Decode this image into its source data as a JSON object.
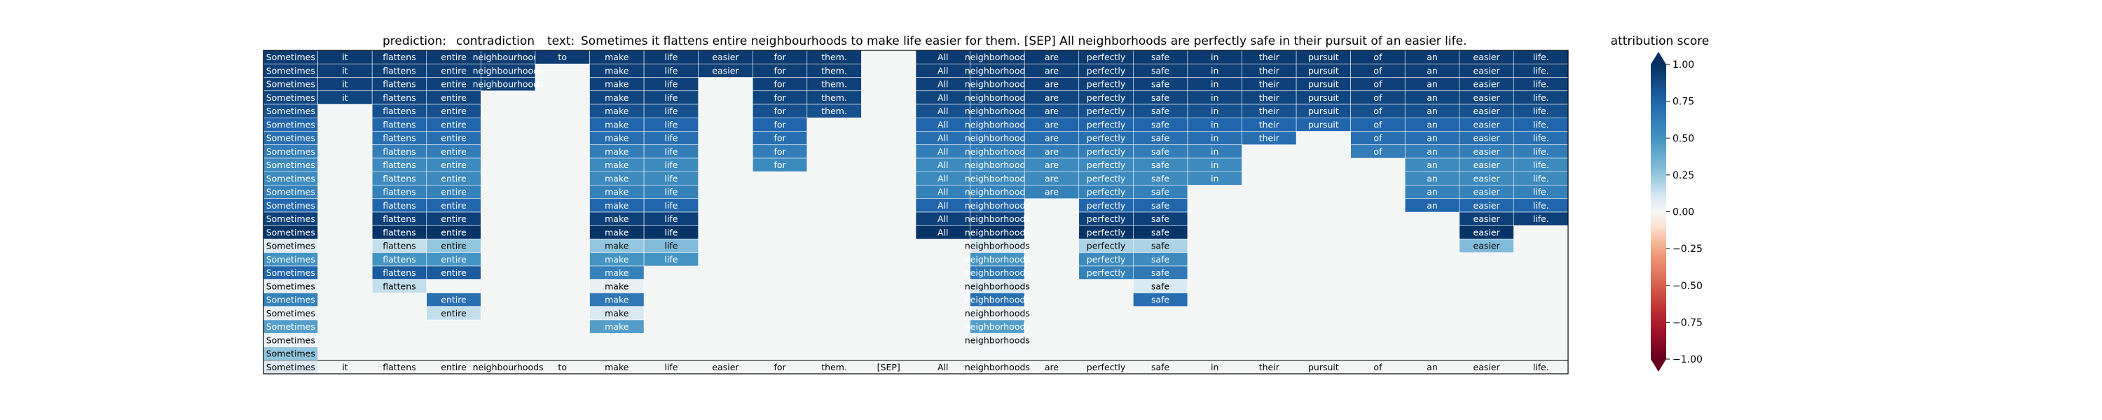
{
  "chart_data": {
    "type": "heatmap",
    "title": {
      "prediction_label": "prediction:",
      "prediction_value": "contradiction",
      "text_label": "text:",
      "text_value": "Sometimes it flattens entire neighbourhoods to make life easier for them. [SEP] All neighborhoods are perfectly safe in their pursuit of an easier life."
    },
    "tokens": [
      "Sometimes",
      "it",
      "flattens",
      "entire",
      "neighbourhoods",
      "to",
      "make",
      "life",
      "easier",
      "for",
      "them.",
      "[SEP]",
      "All",
      "neighborhoods",
      "are",
      "perfectly",
      "safe",
      "in",
      "their",
      "pursuit",
      "of",
      "an",
      "easier",
      "life."
    ],
    "rows": [
      [
        0.95,
        0.95,
        0.95,
        0.95,
        0.95,
        0.95,
        0.95,
        0.95,
        0.95,
        0.95,
        0.95,
        null,
        0.95,
        0.95,
        0.95,
        0.95,
        0.95,
        0.95,
        0.95,
        0.95,
        0.95,
        0.95,
        0.95,
        0.95
      ],
      [
        0.93,
        0.93,
        0.93,
        0.93,
        0.93,
        null,
        0.93,
        0.93,
        0.93,
        0.93,
        0.93,
        null,
        0.93,
        0.93,
        0.93,
        0.93,
        0.93,
        0.93,
        0.93,
        0.93,
        0.93,
        0.93,
        0.93,
        0.93
      ],
      [
        0.92,
        0.92,
        0.92,
        0.92,
        0.92,
        null,
        0.92,
        0.92,
        null,
        0.92,
        0.92,
        null,
        0.92,
        0.92,
        0.92,
        0.92,
        0.92,
        0.92,
        0.92,
        0.92,
        0.92,
        0.92,
        0.92,
        0.92
      ],
      [
        0.9,
        0.9,
        0.9,
        0.9,
        null,
        null,
        0.9,
        0.9,
        null,
        0.9,
        0.9,
        null,
        0.9,
        0.9,
        0.9,
        0.9,
        0.9,
        0.9,
        0.9,
        0.9,
        0.9,
        0.9,
        0.9,
        0.9
      ],
      [
        0.85,
        null,
        0.85,
        0.85,
        null,
        null,
        0.85,
        0.85,
        null,
        0.85,
        0.85,
        null,
        0.85,
        0.85,
        0.85,
        0.85,
        0.85,
        0.85,
        0.85,
        0.85,
        0.85,
        0.85,
        0.85,
        0.85
      ],
      [
        0.75,
        null,
        0.75,
        0.75,
        null,
        null,
        0.75,
        0.75,
        null,
        0.75,
        null,
        null,
        0.75,
        0.75,
        0.75,
        0.75,
        0.75,
        0.75,
        0.75,
        0.75,
        0.75,
        0.75,
        0.75,
        0.75
      ],
      [
        0.7,
        null,
        0.7,
        0.7,
        null,
        null,
        0.7,
        0.7,
        null,
        0.7,
        null,
        null,
        0.7,
        0.7,
        0.7,
        0.7,
        0.7,
        0.7,
        0.7,
        null,
        0.7,
        0.7,
        0.7,
        0.7
      ],
      [
        0.62,
        null,
        0.62,
        0.62,
        null,
        null,
        0.62,
        0.62,
        null,
        0.62,
        null,
        null,
        0.62,
        0.62,
        0.62,
        0.62,
        0.62,
        0.62,
        null,
        null,
        0.62,
        0.62,
        0.62,
        0.62
      ],
      [
        0.55,
        null,
        0.55,
        0.55,
        null,
        null,
        0.55,
        0.55,
        null,
        0.55,
        null,
        null,
        0.55,
        0.55,
        0.55,
        0.55,
        0.55,
        0.55,
        null,
        null,
        null,
        0.55,
        0.55,
        0.55
      ],
      [
        0.55,
        null,
        0.55,
        0.55,
        null,
        null,
        0.55,
        0.55,
        null,
        null,
        null,
        null,
        0.55,
        0.55,
        0.55,
        0.55,
        0.55,
        0.55,
        null,
        null,
        null,
        0.55,
        0.55,
        0.55
      ],
      [
        0.6,
        null,
        0.6,
        0.6,
        null,
        null,
        0.6,
        0.6,
        null,
        null,
        null,
        null,
        0.6,
        0.6,
        0.6,
        0.6,
        0.6,
        null,
        null,
        null,
        null,
        0.6,
        0.6,
        0.6
      ],
      [
        0.75,
        null,
        0.75,
        0.75,
        null,
        null,
        0.75,
        0.75,
        null,
        null,
        null,
        null,
        0.75,
        0.75,
        null,
        0.75,
        0.75,
        null,
        null,
        null,
        null,
        0.75,
        0.75,
        0.75
      ],
      [
        0.92,
        null,
        0.92,
        0.92,
        null,
        null,
        0.92,
        0.92,
        null,
        null,
        null,
        null,
        0.92,
        0.92,
        null,
        0.92,
        0.92,
        null,
        null,
        null,
        null,
        null,
        0.92,
        0.92
      ],
      [
        0.98,
        null,
        0.98,
        0.98,
        null,
        null,
        0.98,
        0.98,
        null,
        null,
        null,
        null,
        0.98,
        0.98,
        null,
        0.98,
        0.98,
        null,
        null,
        null,
        null,
        null,
        0.98,
        null
      ],
      [
        0.08,
        null,
        0.15,
        0.25,
        null,
        null,
        0.25,
        0.3,
        null,
        null,
        null,
        null,
        null,
        0.1,
        null,
        0.2,
        0.2,
        null,
        null,
        null,
        null,
        null,
        0.3,
        null
      ],
      [
        0.5,
        null,
        0.5,
        0.5,
        null,
        null,
        0.5,
        0.5,
        null,
        null,
        null,
        null,
        null,
        0.5,
        null,
        0.55,
        0.55,
        null,
        null,
        null,
        null,
        null,
        null,
        null
      ],
      [
        0.75,
        null,
        0.8,
        0.8,
        null,
        null,
        0.6,
        null,
        null,
        null,
        null,
        null,
        null,
        0.65,
        null,
        0.6,
        0.65,
        null,
        null,
        null,
        null,
        null,
        null,
        null
      ],
      [
        0.05,
        null,
        0.15,
        null,
        null,
        null,
        0.05,
        null,
        null,
        null,
        null,
        null,
        null,
        0.1,
        null,
        null,
        0.1,
        null,
        null,
        null,
        null,
        null,
        null,
        null
      ],
      [
        0.6,
        null,
        null,
        0.7,
        null,
        null,
        0.65,
        null,
        null,
        null,
        null,
        null,
        null,
        0.7,
        null,
        null,
        0.7,
        null,
        null,
        null,
        null,
        null,
        null,
        null
      ],
      [
        0.05,
        null,
        null,
        0.15,
        null,
        null,
        0.1,
        null,
        null,
        null,
        null,
        null,
        null,
        0.05,
        null,
        null,
        null,
        null,
        null,
        null,
        null,
        null,
        null,
        null
      ],
      [
        0.45,
        null,
        null,
        null,
        null,
        null,
        0.45,
        null,
        null,
        null,
        null,
        null,
        null,
        0.45,
        null,
        null,
        null,
        null,
        null,
        null,
        null,
        null,
        null,
        null
      ],
      [
        0.03,
        null,
        null,
        null,
        null,
        null,
        null,
        null,
        null,
        null,
        null,
        null,
        null,
        0.03,
        null,
        null,
        null,
        null,
        null,
        null,
        null,
        null,
        null,
        null
      ],
      [
        0.25,
        null,
        null,
        null,
        null,
        null,
        null,
        null,
        null,
        null,
        null,
        null,
        null,
        null,
        null,
        null,
        null,
        null,
        null,
        null,
        null,
        null,
        null,
        null
      ]
    ],
    "colorbar": {
      "label": "attribution score",
      "vmin": -1.0,
      "vmax": 1.0,
      "ticks": [
        1.0,
        0.75,
        0.5,
        0.25,
        0.0,
        -0.25,
        -0.5,
        -0.75,
        -1.0
      ],
      "tick_labels": [
        "1.00",
        "0.75",
        "0.50",
        "0.25",
        "0.00",
        "−0.25",
        "−0.50",
        "−0.75",
        "−1.00"
      ],
      "extend": "both",
      "colormap": "RdBu"
    },
    "colors": {
      "empty_cell": "#f4f6f6",
      "grid_line": "#ffffff",
      "frame": "#000000",
      "text_on_dark": "#ffffff",
      "text_on_light": "#000000"
    }
  }
}
